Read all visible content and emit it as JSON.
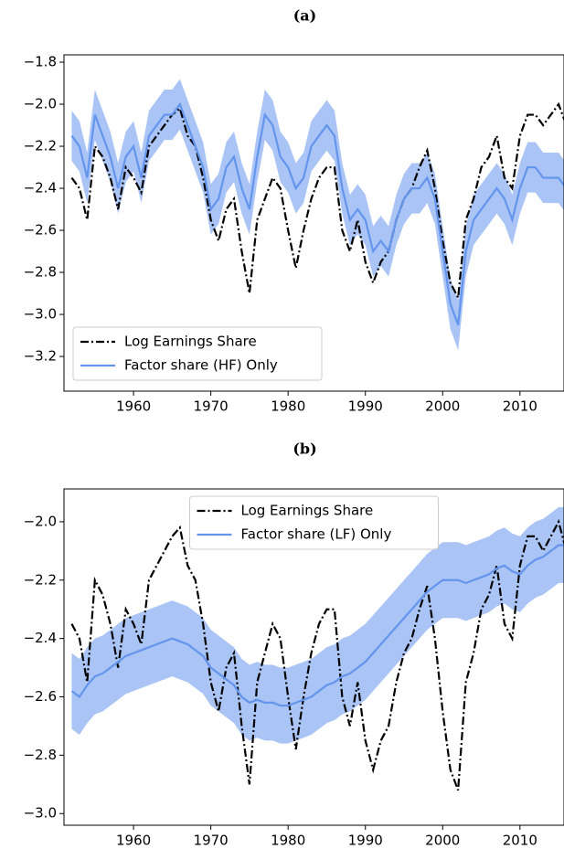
{
  "chart_data": [
    {
      "type": "line",
      "title": "(a)",
      "x": [
        1952,
        1953,
        1954,
        1955,
        1956,
        1957,
        1958,
        1959,
        1960,
        1961,
        1962,
        1963,
        1964,
        1965,
        1966,
        1967,
        1968,
        1969,
        1970,
        1971,
        1972,
        1973,
        1974,
        1975,
        1976,
        1977,
        1978,
        1979,
        1980,
        1981,
        1982,
        1983,
        1984,
        1985,
        1986,
        1987,
        1988,
        1989,
        1990,
        1991,
        1992,
        1993,
        1994,
        1995,
        1996,
        1997,
        1998,
        1999,
        2000,
        2001,
        2002,
        2003,
        2004,
        2005,
        2006,
        2007,
        2008,
        2009,
        2010,
        2011,
        2012,
        2013,
        2014,
        2015,
        2016
      ],
      "series": [
        {
          "name": "Log Earnings Share",
          "color": "#000000",
          "style": "dashdot",
          "values": [
            -2.35,
            -2.4,
            -2.55,
            -2.2,
            -2.25,
            -2.35,
            -2.5,
            -2.3,
            -2.35,
            -2.42,
            -2.2,
            -2.15,
            -2.1,
            -2.05,
            -2.02,
            -2.15,
            -2.2,
            -2.35,
            -2.55,
            -2.65,
            -2.5,
            -2.45,
            -2.7,
            -2.9,
            -2.55,
            -2.45,
            -2.35,
            -2.4,
            -2.6,
            -2.78,
            -2.6,
            -2.45,
            -2.35,
            -2.3,
            -2.3,
            -2.6,
            -2.7,
            -2.55,
            -2.75,
            -2.85,
            -2.75,
            -2.7,
            -2.55,
            -2.45,
            -2.4,
            -2.3,
            -2.22,
            -2.4,
            -2.65,
            -2.85,
            -2.92,
            -2.55,
            -2.45,
            -2.3,
            -2.25,
            -2.15,
            -2.35,
            -2.4,
            -2.15,
            -2.05,
            -2.05,
            -2.1,
            -2.05,
            -2.0,
            -2.1
          ]
        },
        {
          "name": "Factor share (HF) Only",
          "color": "#6495ed",
          "band_color": "#a9c4f5",
          "style": "solid",
          "values": [
            -2.15,
            -2.2,
            -2.35,
            -2.05,
            -2.15,
            -2.25,
            -2.4,
            -2.25,
            -2.2,
            -2.35,
            -2.15,
            -2.1,
            -2.05,
            -2.05,
            -2.0,
            -2.1,
            -2.2,
            -2.3,
            -2.5,
            -2.45,
            -2.3,
            -2.25,
            -2.4,
            -2.5,
            -2.25,
            -2.05,
            -2.1,
            -2.25,
            -2.3,
            -2.4,
            -2.35,
            -2.2,
            -2.15,
            -2.1,
            -2.15,
            -2.4,
            -2.55,
            -2.5,
            -2.55,
            -2.7,
            -2.65,
            -2.7,
            -2.55,
            -2.45,
            -2.4,
            -2.4,
            -2.35,
            -2.45,
            -2.7,
            -2.95,
            -3.05,
            -2.7,
            -2.55,
            -2.5,
            -2.45,
            -2.4,
            -2.45,
            -2.55,
            -2.4,
            -2.3,
            -2.3,
            -2.35,
            -2.35,
            -2.35,
            -2.4
          ],
          "lower": [
            -2.27,
            -2.32,
            -2.47,
            -2.17,
            -2.27,
            -2.37,
            -2.52,
            -2.37,
            -2.32,
            -2.47,
            -2.27,
            -2.22,
            -2.17,
            -2.17,
            -2.12,
            -2.22,
            -2.32,
            -2.42,
            -2.62,
            -2.57,
            -2.42,
            -2.37,
            -2.52,
            -2.62,
            -2.37,
            -2.17,
            -2.22,
            -2.37,
            -2.42,
            -2.52,
            -2.47,
            -2.32,
            -2.27,
            -2.22,
            -2.27,
            -2.52,
            -2.67,
            -2.62,
            -2.67,
            -2.82,
            -2.77,
            -2.82,
            -2.67,
            -2.57,
            -2.52,
            -2.52,
            -2.47,
            -2.57,
            -2.82,
            -3.07,
            -3.17,
            -2.82,
            -2.67,
            -2.62,
            -2.57,
            -2.52,
            -2.57,
            -2.67,
            -2.52,
            -2.42,
            -2.42,
            -2.47,
            -2.47,
            -2.47,
            -2.52
          ],
          "upper": [
            -2.03,
            -2.08,
            -2.23,
            -1.93,
            -2.03,
            -2.13,
            -2.28,
            -2.13,
            -2.08,
            -2.23,
            -2.03,
            -1.98,
            -1.93,
            -1.93,
            -1.88,
            -1.98,
            -2.08,
            -2.18,
            -2.38,
            -2.33,
            -2.18,
            -2.13,
            -2.28,
            -2.38,
            -2.13,
            -1.93,
            -1.98,
            -2.13,
            -2.18,
            -2.28,
            -2.23,
            -2.08,
            -2.03,
            -1.98,
            -2.03,
            -2.28,
            -2.43,
            -2.38,
            -2.43,
            -2.58,
            -2.53,
            -2.58,
            -2.43,
            -2.33,
            -2.28,
            -2.28,
            -2.23,
            -2.33,
            -2.58,
            -2.83,
            -2.93,
            -2.58,
            -2.43,
            -2.38,
            -2.33,
            -2.28,
            -2.33,
            -2.43,
            -2.28,
            -2.18,
            -2.18,
            -2.23,
            -2.23,
            -2.23,
            -2.28
          ]
        }
      ],
      "xlim": [
        1951,
        2015.7
      ],
      "xticks": [
        1960,
        1970,
        1980,
        1990,
        2000,
        2010
      ],
      "ylim": [
        -3.365,
        -1.765
      ],
      "yticks": [
        {
          "value": -1.8,
          "label": "−1.8"
        },
        {
          "value": -2.0,
          "label": "−2.0"
        },
        {
          "value": -2.2,
          "label": "−2.2"
        },
        {
          "value": -2.4,
          "label": "−2.4"
        },
        {
          "value": -2.6,
          "label": "−2.6"
        },
        {
          "value": -2.8,
          "label": "−2.8"
        },
        {
          "value": -3.0,
          "label": "−3.0"
        },
        {
          "value": -3.2,
          "label": "−3.2"
        }
      ],
      "legend": "lower left"
    },
    {
      "type": "line",
      "title": "(b)",
      "x": [
        1952,
        1953,
        1954,
        1955,
        1956,
        1957,
        1958,
        1959,
        1960,
        1961,
        1962,
        1963,
        1964,
        1965,
        1966,
        1967,
        1968,
        1969,
        1970,
        1971,
        1972,
        1973,
        1974,
        1975,
        1976,
        1977,
        1978,
        1979,
        1980,
        1981,
        1982,
        1983,
        1984,
        1985,
        1986,
        1987,
        1988,
        1989,
        1990,
        1991,
        1992,
        1993,
        1994,
        1995,
        1996,
        1997,
        1998,
        1999,
        2000,
        2001,
        2002,
        2003,
        2004,
        2005,
        2006,
        2007,
        2008,
        2009,
        2010,
        2011,
        2012,
        2013,
        2014,
        2015,
        2016
      ],
      "series": [
        {
          "name": "Log Earnings Share",
          "color": "#000000",
          "style": "dashdot",
          "values": [
            -2.35,
            -2.4,
            -2.55,
            -2.2,
            -2.25,
            -2.35,
            -2.5,
            -2.3,
            -2.35,
            -2.42,
            -2.2,
            -2.15,
            -2.1,
            -2.05,
            -2.02,
            -2.15,
            -2.2,
            -2.35,
            -2.55,
            -2.65,
            -2.5,
            -2.45,
            -2.7,
            -2.9,
            -2.55,
            -2.45,
            -2.35,
            -2.4,
            -2.6,
            -2.78,
            -2.6,
            -2.45,
            -2.35,
            -2.3,
            -2.3,
            -2.6,
            -2.7,
            -2.55,
            -2.75,
            -2.85,
            -2.75,
            -2.7,
            -2.55,
            -2.45,
            -2.4,
            -2.3,
            -2.22,
            -2.4,
            -2.65,
            -2.85,
            -2.92,
            -2.55,
            -2.45,
            -2.3,
            -2.25,
            -2.15,
            -2.35,
            -2.4,
            -2.15,
            -2.05,
            -2.05,
            -2.1,
            -2.05,
            -2.0,
            -2.1
          ]
        },
        {
          "name": "Factor share (LF) Only",
          "color": "#6495ed",
          "band_color": "#a9c4f5",
          "style": "solid",
          "values": [
            -2.58,
            -2.6,
            -2.56,
            -2.53,
            -2.52,
            -2.5,
            -2.48,
            -2.46,
            -2.45,
            -2.44,
            -2.43,
            -2.42,
            -2.41,
            -2.4,
            -2.41,
            -2.42,
            -2.44,
            -2.46,
            -2.5,
            -2.52,
            -2.54,
            -2.56,
            -2.6,
            -2.62,
            -2.61,
            -2.62,
            -2.62,
            -2.63,
            -2.63,
            -2.62,
            -2.61,
            -2.6,
            -2.58,
            -2.56,
            -2.55,
            -2.53,
            -2.52,
            -2.5,
            -2.48,
            -2.45,
            -2.42,
            -2.39,
            -2.36,
            -2.33,
            -2.3,
            -2.27,
            -2.24,
            -2.22,
            -2.2,
            -2.2,
            -2.2,
            -2.21,
            -2.2,
            -2.19,
            -2.18,
            -2.16,
            -2.15,
            -2.17,
            -2.18,
            -2.15,
            -2.13,
            -2.12,
            -2.1,
            -2.08,
            -2.08
          ],
          "lower": [
            -2.71,
            -2.73,
            -2.69,
            -2.66,
            -2.65,
            -2.63,
            -2.61,
            -2.59,
            -2.58,
            -2.57,
            -2.56,
            -2.55,
            -2.54,
            -2.53,
            -2.54,
            -2.55,
            -2.57,
            -2.59,
            -2.63,
            -2.65,
            -2.67,
            -2.69,
            -2.73,
            -2.75,
            -2.74,
            -2.75,
            -2.75,
            -2.76,
            -2.76,
            -2.75,
            -2.74,
            -2.73,
            -2.71,
            -2.69,
            -2.68,
            -2.66,
            -2.65,
            -2.63,
            -2.61,
            -2.58,
            -2.55,
            -2.52,
            -2.49,
            -2.46,
            -2.43,
            -2.4,
            -2.37,
            -2.35,
            -2.33,
            -2.33,
            -2.33,
            -2.34,
            -2.33,
            -2.32,
            -2.31,
            -2.29,
            -2.28,
            -2.3,
            -2.31,
            -2.28,
            -2.26,
            -2.25,
            -2.23,
            -2.21,
            -2.21
          ],
          "upper": [
            -2.45,
            -2.47,
            -2.43,
            -2.4,
            -2.39,
            -2.37,
            -2.35,
            -2.33,
            -2.32,
            -2.31,
            -2.3,
            -2.29,
            -2.28,
            -2.27,
            -2.28,
            -2.29,
            -2.31,
            -2.33,
            -2.37,
            -2.39,
            -2.41,
            -2.43,
            -2.47,
            -2.49,
            -2.48,
            -2.49,
            -2.49,
            -2.5,
            -2.5,
            -2.49,
            -2.48,
            -2.47,
            -2.45,
            -2.43,
            -2.42,
            -2.4,
            -2.39,
            -2.37,
            -2.35,
            -2.32,
            -2.29,
            -2.26,
            -2.23,
            -2.2,
            -2.17,
            -2.14,
            -2.11,
            -2.09,
            -2.07,
            -2.07,
            -2.07,
            -2.08,
            -2.07,
            -2.06,
            -2.05,
            -2.03,
            -2.02,
            -2.04,
            -2.05,
            -2.02,
            -2.0,
            -1.99,
            -1.97,
            -1.95,
            -1.95
          ]
        }
      ],
      "xlim": [
        1951,
        2015.7
      ],
      "xticks": [
        1960,
        1970,
        1980,
        1990,
        2000,
        2010
      ],
      "ylim": [
        -3.04,
        -1.8875
      ],
      "yticks": [
        {
          "value": -2.0,
          "label": "−2.0"
        },
        {
          "value": -2.2,
          "label": "−2.2"
        },
        {
          "value": -2.4,
          "label": "−2.4"
        },
        {
          "value": -2.6,
          "label": "−2.6"
        },
        {
          "value": -2.8,
          "label": "−2.8"
        },
        {
          "value": -3.0,
          "label": "−3.0"
        }
      ],
      "legend": "upper center"
    }
  ]
}
